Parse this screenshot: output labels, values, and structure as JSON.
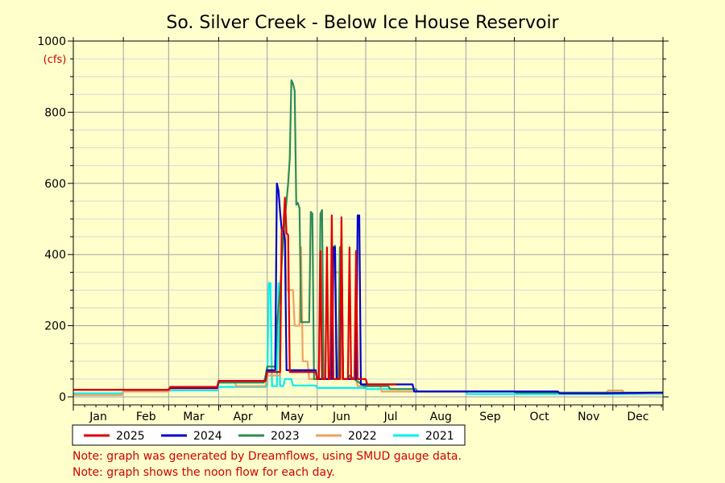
{
  "chart_data": {
    "type": "line",
    "title": "So. Silver Creek - Below Ice House Reservoir",
    "ylabel": "(cfs)",
    "xlabel": "",
    "ylim": [
      0,
      1000
    ],
    "yticks": [
      0,
      200,
      400,
      600,
      800,
      1000
    ],
    "xlim": [
      0,
      365
    ],
    "months": [
      "Jan",
      "Feb",
      "Mar",
      "Apr",
      "May",
      "Jun",
      "Jul",
      "Aug",
      "Sep",
      "Oct",
      "Nov",
      "Dec"
    ],
    "grid": true,
    "legend_position": "bottom",
    "series": [
      {
        "name": "2021",
        "color": "#00f0f0",
        "points": [
          [
            0,
            10
          ],
          [
            30,
            10
          ],
          [
            31,
            15
          ],
          [
            59,
            15
          ],
          [
            60,
            18
          ],
          [
            89,
            18
          ],
          [
            90,
            28
          ],
          [
            119,
            28
          ],
          [
            120,
            30
          ],
          [
            121,
            320
          ],
          [
            122,
            320
          ],
          [
            123,
            30
          ],
          [
            126,
            30
          ],
          [
            127,
            320
          ],
          [
            128,
            30
          ],
          [
            130,
            30
          ],
          [
            131,
            50
          ],
          [
            135,
            50
          ],
          [
            136,
            32
          ],
          [
            150,
            32
          ],
          [
            151,
            25
          ],
          [
            181,
            25
          ],
          [
            182,
            22
          ],
          [
            212,
            22
          ],
          [
            213,
            15
          ],
          [
            243,
            15
          ],
          [
            244,
            8
          ],
          [
            365,
            8
          ]
        ]
      },
      {
        "name": "2022",
        "color": "#f0a060",
        "points": [
          [
            0,
            5
          ],
          [
            30,
            5
          ],
          [
            31,
            15
          ],
          [
            59,
            15
          ],
          [
            60,
            22
          ],
          [
            89,
            22
          ],
          [
            90,
            40
          ],
          [
            100,
            40
          ],
          [
            101,
            30
          ],
          [
            119,
            30
          ],
          [
            120,
            60
          ],
          [
            128,
            60
          ],
          [
            129,
            450
          ],
          [
            130,
            450
          ],
          [
            131,
            540
          ],
          [
            132,
            300
          ],
          [
            136,
            300
          ],
          [
            137,
            200
          ],
          [
            140,
            200
          ],
          [
            141,
            420
          ],
          [
            142,
            100
          ],
          [
            145,
            100
          ],
          [
            146,
            50
          ],
          [
            160,
            50
          ],
          [
            161,
            350
          ],
          [
            165,
            350
          ],
          [
            166,
            50
          ],
          [
            175,
            50
          ],
          [
            176,
            30
          ],
          [
            190,
            30
          ],
          [
            191,
            15
          ],
          [
            300,
            15
          ],
          [
            301,
            10
          ],
          [
            330,
            10
          ],
          [
            331,
            18
          ],
          [
            340,
            18
          ],
          [
            341,
            10
          ],
          [
            365,
            10
          ]
        ]
      },
      {
        "name": "2023",
        "color": "#2e8b57",
        "points": [
          [
            0,
            20
          ],
          [
            30,
            20
          ],
          [
            31,
            20
          ],
          [
            59,
            20
          ],
          [
            60,
            25
          ],
          [
            89,
            25
          ],
          [
            90,
            40
          ],
          [
            118,
            40
          ],
          [
            119,
            60
          ],
          [
            120,
            85
          ],
          [
            125,
            85
          ],
          [
            126,
            200
          ],
          [
            128,
            300
          ],
          [
            130,
            450
          ],
          [
            133,
            600
          ],
          [
            134,
            670
          ],
          [
            135,
            890
          ],
          [
            136,
            880
          ],
          [
            137,
            860
          ],
          [
            138,
            540
          ],
          [
            139,
            545
          ],
          [
            140,
            530
          ],
          [
            141,
            210
          ],
          [
            145,
            210
          ],
          [
            146,
            210
          ],
          [
            147,
            520
          ],
          [
            148,
            515
          ],
          [
            149,
            50
          ],
          [
            152,
            50
          ],
          [
            153,
            515
          ],
          [
            154,
            525
          ],
          [
            155,
            50
          ],
          [
            160,
            50
          ],
          [
            161,
            420
          ],
          [
            162,
            425
          ],
          [
            163,
            50
          ],
          [
            164,
            50
          ],
          [
            165,
            420
          ],
          [
            166,
            425
          ],
          [
            167,
            50
          ],
          [
            170,
            50
          ],
          [
            171,
            60
          ],
          [
            180,
            30
          ],
          [
            195,
            30
          ],
          [
            196,
            22
          ],
          [
            212,
            22
          ],
          [
            213,
            15
          ],
          [
            243,
            15
          ],
          [
            244,
            15
          ],
          [
            273,
            15
          ],
          [
            274,
            12
          ],
          [
            365,
            12
          ]
        ]
      },
      {
        "name": "2024",
        "color": "#0000cc",
        "points": [
          [
            0,
            20
          ],
          [
            30,
            20
          ],
          [
            31,
            20
          ],
          [
            59,
            20
          ],
          [
            60,
            25
          ],
          [
            89,
            25
          ],
          [
            90,
            45
          ],
          [
            119,
            45
          ],
          [
            120,
            75
          ],
          [
            125,
            75
          ],
          [
            126,
            600
          ],
          [
            127,
            580
          ],
          [
            128,
            520
          ],
          [
            129,
            470
          ],
          [
            130,
            470
          ],
          [
            131,
            440
          ],
          [
            132,
            75
          ],
          [
            150,
            75
          ],
          [
            151,
            50
          ],
          [
            160,
            50
          ],
          [
            161,
            420
          ],
          [
            162,
            420
          ],
          [
            163,
            50
          ],
          [
            165,
            50
          ],
          [
            166,
            420
          ],
          [
            167,
            50
          ],
          [
            175,
            50
          ],
          [
            176,
            510
          ],
          [
            177,
            510
          ],
          [
            178,
            35
          ],
          [
            210,
            35
          ],
          [
            211,
            15
          ],
          [
            273,
            15
          ],
          [
            274,
            15
          ],
          [
            300,
            15
          ],
          [
            301,
            10
          ],
          [
            330,
            10
          ],
          [
            331,
            10
          ],
          [
            365,
            12
          ]
        ]
      },
      {
        "name": "2025",
        "color": "#e00000",
        "points": [
          [
            0,
            20
          ],
          [
            30,
            20
          ],
          [
            31,
            20
          ],
          [
            59,
            20
          ],
          [
            60,
            28
          ],
          [
            89,
            28
          ],
          [
            90,
            45
          ],
          [
            119,
            45
          ],
          [
            120,
            70
          ],
          [
            128,
            70
          ],
          [
            129,
            470
          ],
          [
            130,
            470
          ],
          [
            131,
            560
          ],
          [
            132,
            460
          ],
          [
            133,
            455
          ],
          [
            134,
            70
          ],
          [
            150,
            70
          ],
          [
            151,
            50
          ],
          [
            152,
            50
          ],
          [
            153,
            410
          ],
          [
            154,
            50
          ],
          [
            156,
            50
          ],
          [
            157,
            420
          ],
          [
            158,
            50
          ],
          [
            159,
            50
          ],
          [
            160,
            510
          ],
          [
            161,
            50
          ],
          [
            165,
            50
          ],
          [
            166,
            505
          ],
          [
            167,
            50
          ],
          [
            170,
            50
          ],
          [
            171,
            420
          ],
          [
            172,
            50
          ],
          [
            174,
            50
          ],
          [
            175,
            410
          ],
          [
            176,
            50
          ],
          [
            181,
            50
          ],
          [
            182,
            35
          ],
          [
            200,
            35
          ]
        ]
      }
    ]
  },
  "notes": [
    "Note: graph was generated by Dreamflows, using SMUD gauge data.",
    "Note: graph shows the noon flow for each day."
  ]
}
